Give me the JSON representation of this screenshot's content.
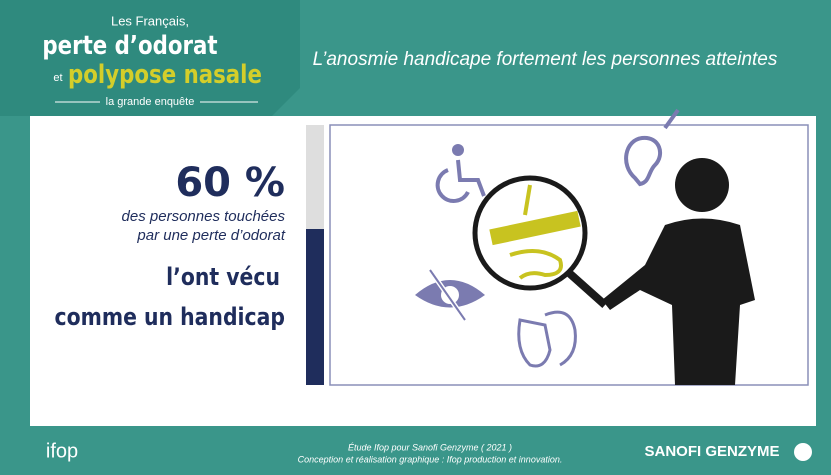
{
  "header": {
    "kicker": "Les Français,",
    "line1": "perte d’odorat",
    "conjunction": "et",
    "line2": "polypose nasale",
    "tagline": "la grande enquête"
  },
  "title": "L’anosmie handicape fortement les personnes atteintes",
  "headline": {
    "value": 60,
    "label": "60 %"
  },
  "description": [
    "des personnes touchées",
    "par une perte d’odorat"
  ],
  "statement": [
    "l’ont vécu",
    "comme un handicap"
  ],
  "footer": {
    "logo": "ifop",
    "credits": [
      "Étude Ifop pour Sanofi Genzyme ( 2021 )",
      "Conception et réalisation graphique : Ifop production et innovation."
    ],
    "brand": "SANOFI GENZYME"
  }
}
